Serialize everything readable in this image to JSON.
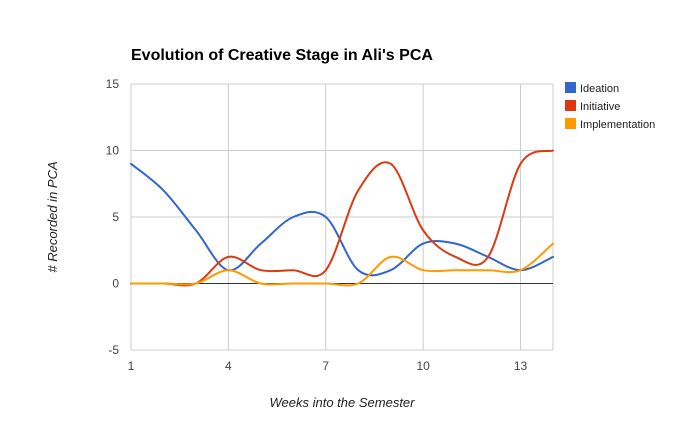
{
  "chart_data": {
    "type": "line",
    "title": "Evolution of Creative Stage in Ali's PCA",
    "xlabel": "Weeks into the Semester",
    "ylabel": "# Recorded in PCA",
    "xlim": [
      1,
      14
    ],
    "ylim": [
      -5,
      15
    ],
    "xticks": [
      1,
      4,
      7,
      10,
      13
    ],
    "yticks": [
      -5,
      0,
      5,
      10,
      15
    ],
    "grid": true,
    "smooth": true,
    "legend_position": "right",
    "x": [
      1,
      2,
      3,
      4,
      5,
      6,
      7,
      8,
      9,
      10,
      11,
      12,
      13,
      14
    ],
    "series": [
      {
        "name": "Ideation",
        "color": "#3366cc",
        "values": [
          9,
          7,
          4,
          1,
          3,
          5,
          5,
          1,
          1,
          3,
          3,
          2,
          1,
          2
        ]
      },
      {
        "name": "Initiative",
        "color": "#dc3912",
        "values": [
          0,
          0,
          0,
          2,
          1,
          1,
          1,
          7,
          9,
          4,
          2,
          2,
          9,
          10
        ]
      },
      {
        "name": "Implementation",
        "color": "#ff9900",
        "values": [
          0,
          0,
          0,
          1,
          0,
          0,
          0,
          0,
          2,
          1,
          1,
          1,
          1,
          3
        ]
      }
    ]
  }
}
